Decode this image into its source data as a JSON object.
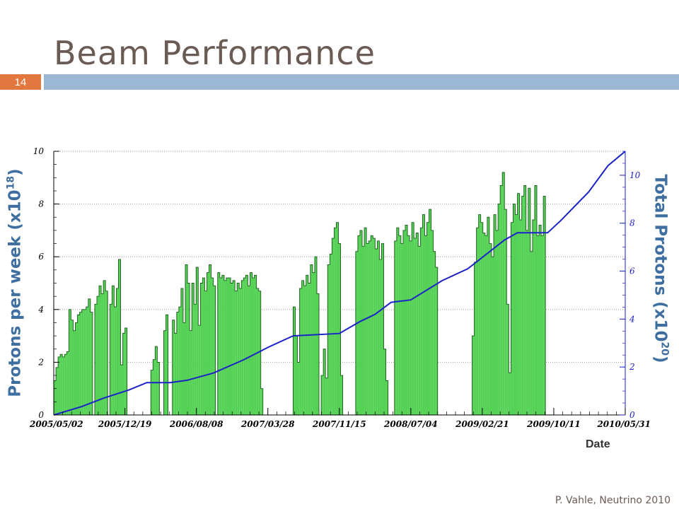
{
  "slide": {
    "title": "Beam Performance",
    "number": "14",
    "footer": "P. Vahle, Neutrino 2010"
  },
  "chart_data": {
    "type": "bar",
    "xlabel": "Date",
    "ylabel_left_base": "Protons per week (x10",
    "ylabel_left_exp": "18",
    "ylabel_left_close": ")",
    "ylabel_right_base": "Total Protons (x10",
    "ylabel_right_exp": "20",
    "ylabel_right_close": ")",
    "ylim_left": [
      0,
      10
    ],
    "ylim_right": [
      0,
      11
    ],
    "yticks_left": [
      0,
      2,
      4,
      6,
      8,
      10
    ],
    "yticks_right": [
      0,
      2,
      4,
      6,
      8,
      10
    ],
    "x_ticks": [
      "2005/05/02",
      "2005/12/19",
      "2006/08/08",
      "2007/03/28",
      "2007/11/15",
      "2008/07/04",
      "2009/02/21",
      "2009/10/11",
      "2010/05/31"
    ],
    "grid": "horizontal dotted",
    "bar_color": "#55d155",
    "line_color": "#1a22c8",
    "series": [
      {
        "type": "bar",
        "unit": "1e18 protons/week",
        "start": "2005/05/02",
        "interval_days": 7,
        "values": [
          1.3,
          1.8,
          2.2,
          2.3,
          2.2,
          2.3,
          2.4,
          4.0,
          3.6,
          3.2,
          3.5,
          3.8,
          3.9,
          4.0,
          4.0,
          4.1,
          4.4,
          3.9,
          0,
          4.2,
          4.5,
          4.9,
          4.6,
          5.1,
          4.7,
          0,
          4.2,
          4.9,
          4.1,
          4.8,
          5.9,
          1.9,
          3.1,
          3.3,
          0,
          0,
          0,
          0,
          0,
          0,
          0,
          0,
          0,
          0,
          0,
          1.7,
          2.1,
          2.6,
          2.0,
          0,
          0,
          3.2,
          3.8,
          0,
          0,
          3.6,
          3.1,
          3.9,
          4.1,
          4.8,
          3.5,
          5.7,
          5.0,
          3.2,
          5.0,
          4.2,
          5.6,
          3.4,
          5.0,
          5.2,
          4.7,
          5.4,
          5.7,
          5.2,
          4.9,
          0,
          5.4,
          5.2,
          5.3,
          5.1,
          5.2,
          5.2,
          5.0,
          5.1,
          4.7,
          5.0,
          4.8,
          5.1,
          5.2,
          5.3,
          4.9,
          5.4,
          5.2,
          5.3,
          4.8,
          4.7,
          1.0,
          0,
          0,
          0,
          0,
          0,
          0,
          0,
          0,
          0,
          0,
          0,
          0,
          0,
          0,
          4.1,
          3.0,
          2.0,
          4.8,
          5.1,
          4.9,
          5.3,
          5.0,
          5.7,
          5.4,
          6.0,
          4.6,
          0,
          1.5,
          2.5,
          1.4,
          5.7,
          6.1,
          6.7,
          7.1,
          7.3,
          6.5,
          1.5,
          0,
          0,
          0,
          0,
          0,
          0,
          6.2,
          6.8,
          7.0,
          6.4,
          7.1,
          6.5,
          6.6,
          6.8,
          6.7,
          6.3,
          6.6,
          5.9,
          6.5,
          2.5,
          1.3,
          0,
          0,
          0,
          6.6,
          7.1,
          6.8,
          6.5,
          7.0,
          7.2,
          6.8,
          6.6,
          7.3,
          6.7,
          6.9,
          6.4,
          7.1,
          7.6,
          6.8,
          7.3,
          7.8,
          7.0,
          6.2,
          5.6,
          0,
          0,
          0,
          0,
          0,
          0,
          0,
          0,
          0,
          0,
          0,
          0,
          0,
          0,
          0,
          0,
          3.0,
          5.8,
          7.1,
          7.6,
          7.3,
          6.9,
          6.8,
          7.5,
          6.5,
          6.0,
          7.6,
          7.0,
          8.0,
          8.7,
          9.2,
          7.8,
          4.2,
          1.6,
          7.3,
          8.0,
          7.6,
          8.4,
          7.4,
          8.3,
          8.7,
          7.0,
          8.6,
          6.2,
          7.4,
          8.7,
          6.8,
          7.2,
          6.8,
          8.3
        ]
      },
      {
        "type": "line",
        "unit": "1e20 protons (cumulative)",
        "points": [
          [
            "2005/05/02",
            0
          ],
          [
            "2005/08/01",
            0.35
          ],
          [
            "2005/10/10",
            0.7
          ],
          [
            "2006/01/02",
            1.05
          ],
          [
            "2006/02/28",
            1.35
          ],
          [
            "2006/05/15",
            1.35
          ],
          [
            "2006/07/10",
            1.45
          ],
          [
            "2006/10/02",
            1.75
          ],
          [
            "2007/01/08",
            2.3
          ],
          [
            "2007/04/02",
            2.85
          ],
          [
            "2007/06/18",
            3.3
          ],
          [
            "2007/11/15",
            3.4
          ],
          [
            "2008/01/21",
            3.9
          ],
          [
            "2008/03/10",
            4.2
          ],
          [
            "2008/05/01",
            4.7
          ],
          [
            "2008/07/04",
            4.8
          ],
          [
            "2008/10/13",
            5.6
          ],
          [
            "2009/01/05",
            6.1
          ],
          [
            "2009/05/04",
            7.3
          ],
          [
            "2009/06/15",
            7.6
          ],
          [
            "2009/09/21",
            7.6
          ],
          [
            "2009/11/02",
            8.1
          ],
          [
            "2010/02/01",
            9.3
          ],
          [
            "2010/04/05",
            10.4
          ],
          [
            "2010/05/31",
            11.0
          ]
        ]
      }
    ]
  }
}
